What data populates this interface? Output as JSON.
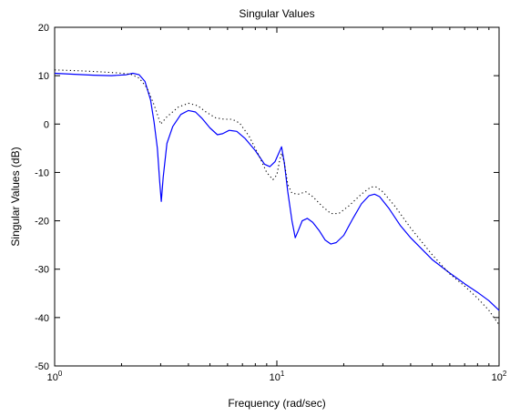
{
  "chart_data": {
    "type": "line",
    "title": "Singular Values",
    "xlabel": "Frequency (rad/sec)",
    "ylabel": "Singular Values (dB)",
    "xscale": "log",
    "xlim": [
      1,
      100
    ],
    "ylim": [
      -50,
      20
    ],
    "grid": false,
    "legend": "none",
    "x_ticks": [
      {
        "value": 1,
        "base": "10",
        "exp": "0"
      },
      {
        "value": 10,
        "base": "10",
        "exp": "1"
      },
      {
        "value": 100,
        "base": "10",
        "exp": "2"
      }
    ],
    "y_ticks": [
      {
        "value": 20,
        "label": "20"
      },
      {
        "value": 10,
        "label": "10"
      },
      {
        "value": 0,
        "label": "0"
      },
      {
        "value": -10,
        "label": "-10"
      },
      {
        "value": -20,
        "label": "-20"
      },
      {
        "value": -30,
        "label": "-30"
      },
      {
        "value": -40,
        "label": "-40"
      },
      {
        "value": -50,
        "label": "-50"
      }
    ],
    "series": [
      {
        "style": "solid",
        "color": "#0000ff",
        "points": [
          [
            1.0,
            10.5
          ],
          [
            1.2,
            10.3
          ],
          [
            1.5,
            10.1
          ],
          [
            1.8,
            10.0
          ],
          [
            2.1,
            10.2
          ],
          [
            2.25,
            10.5
          ],
          [
            2.4,
            10.2
          ],
          [
            2.55,
            8.8
          ],
          [
            2.7,
            5.0
          ],
          [
            2.8,
            0.5
          ],
          [
            2.9,
            -5.0
          ],
          [
            2.97,
            -12.0
          ],
          [
            3.02,
            -16.0
          ],
          [
            3.08,
            -11.0
          ],
          [
            3.2,
            -4.0
          ],
          [
            3.4,
            -0.5
          ],
          [
            3.7,
            2.0
          ],
          [
            4.0,
            2.8
          ],
          [
            4.3,
            2.5
          ],
          [
            4.6,
            1.2
          ],
          [
            5.0,
            -0.8
          ],
          [
            5.4,
            -2.2
          ],
          [
            5.7,
            -2.0
          ],
          [
            6.1,
            -1.3
          ],
          [
            6.6,
            -1.5
          ],
          [
            7.2,
            -3.0
          ],
          [
            8.0,
            -5.5
          ],
          [
            8.8,
            -8.3
          ],
          [
            9.3,
            -8.8
          ],
          [
            9.8,
            -7.8
          ],
          [
            10.2,
            -6.0
          ],
          [
            10.5,
            -4.7
          ],
          [
            10.8,
            -8.0
          ],
          [
            11.2,
            -14.0
          ],
          [
            11.7,
            -20.0
          ],
          [
            12.1,
            -23.5
          ],
          [
            12.5,
            -22.0
          ],
          [
            13.0,
            -20.0
          ],
          [
            13.7,
            -19.5
          ],
          [
            14.5,
            -20.3
          ],
          [
            15.5,
            -22.0
          ],
          [
            16.5,
            -24.0
          ],
          [
            17.5,
            -24.8
          ],
          [
            18.5,
            -24.5
          ],
          [
            20.0,
            -23.0
          ],
          [
            22.0,
            -19.5
          ],
          [
            24.0,
            -16.5
          ],
          [
            26.0,
            -14.8
          ],
          [
            27.5,
            -14.5
          ],
          [
            29.0,
            -15.0
          ],
          [
            32.0,
            -17.5
          ],
          [
            36.0,
            -21.0
          ],
          [
            40.0,
            -23.5
          ],
          [
            50.0,
            -28.0
          ],
          [
            60.0,
            -30.8
          ],
          [
            70.0,
            -33.0
          ],
          [
            80.0,
            -34.8
          ],
          [
            90.0,
            -36.5
          ],
          [
            100.0,
            -38.5
          ]
        ]
      },
      {
        "style": "dotted",
        "color": "#000000",
        "points": [
          [
            1.0,
            11.2
          ],
          [
            1.3,
            11.0
          ],
          [
            1.6,
            10.8
          ],
          [
            1.9,
            10.6
          ],
          [
            2.2,
            10.3
          ],
          [
            2.4,
            9.5
          ],
          [
            2.6,
            7.5
          ],
          [
            2.8,
            4.0
          ],
          [
            3.0,
            0.0
          ],
          [
            3.2,
            1.5
          ],
          [
            3.6,
            3.5
          ],
          [
            4.0,
            4.3
          ],
          [
            4.4,
            3.8
          ],
          [
            4.8,
            2.5
          ],
          [
            5.3,
            1.3
          ],
          [
            5.8,
            1.0
          ],
          [
            6.3,
            1.0
          ],
          [
            6.8,
            0.2
          ],
          [
            7.5,
            -2.5
          ],
          [
            8.3,
            -6.5
          ],
          [
            9.0,
            -10.0
          ],
          [
            9.6,
            -11.5
          ],
          [
            10.0,
            -10.5
          ],
          [
            10.3,
            -7.5
          ],
          [
            10.5,
            -6.0
          ],
          [
            10.8,
            -8.0
          ],
          [
            11.2,
            -12.5
          ],
          [
            11.7,
            -14.3
          ],
          [
            12.5,
            -14.5
          ],
          [
            13.5,
            -14.0
          ],
          [
            14.5,
            -15.0
          ],
          [
            16.0,
            -17.0
          ],
          [
            17.5,
            -18.5
          ],
          [
            19.0,
            -18.5
          ],
          [
            21.0,
            -17.0
          ],
          [
            24.0,
            -14.5
          ],
          [
            26.5,
            -13.0
          ],
          [
            28.0,
            -13.0
          ],
          [
            30.0,
            -14.0
          ],
          [
            34.0,
            -17.0
          ],
          [
            40.0,
            -21.5
          ],
          [
            50.0,
            -27.0
          ],
          [
            60.0,
            -31.0
          ],
          [
            70.0,
            -33.5
          ],
          [
            80.0,
            -36.0
          ],
          [
            90.0,
            -38.5
          ],
          [
            100.0,
            -41.5
          ]
        ]
      }
    ]
  }
}
